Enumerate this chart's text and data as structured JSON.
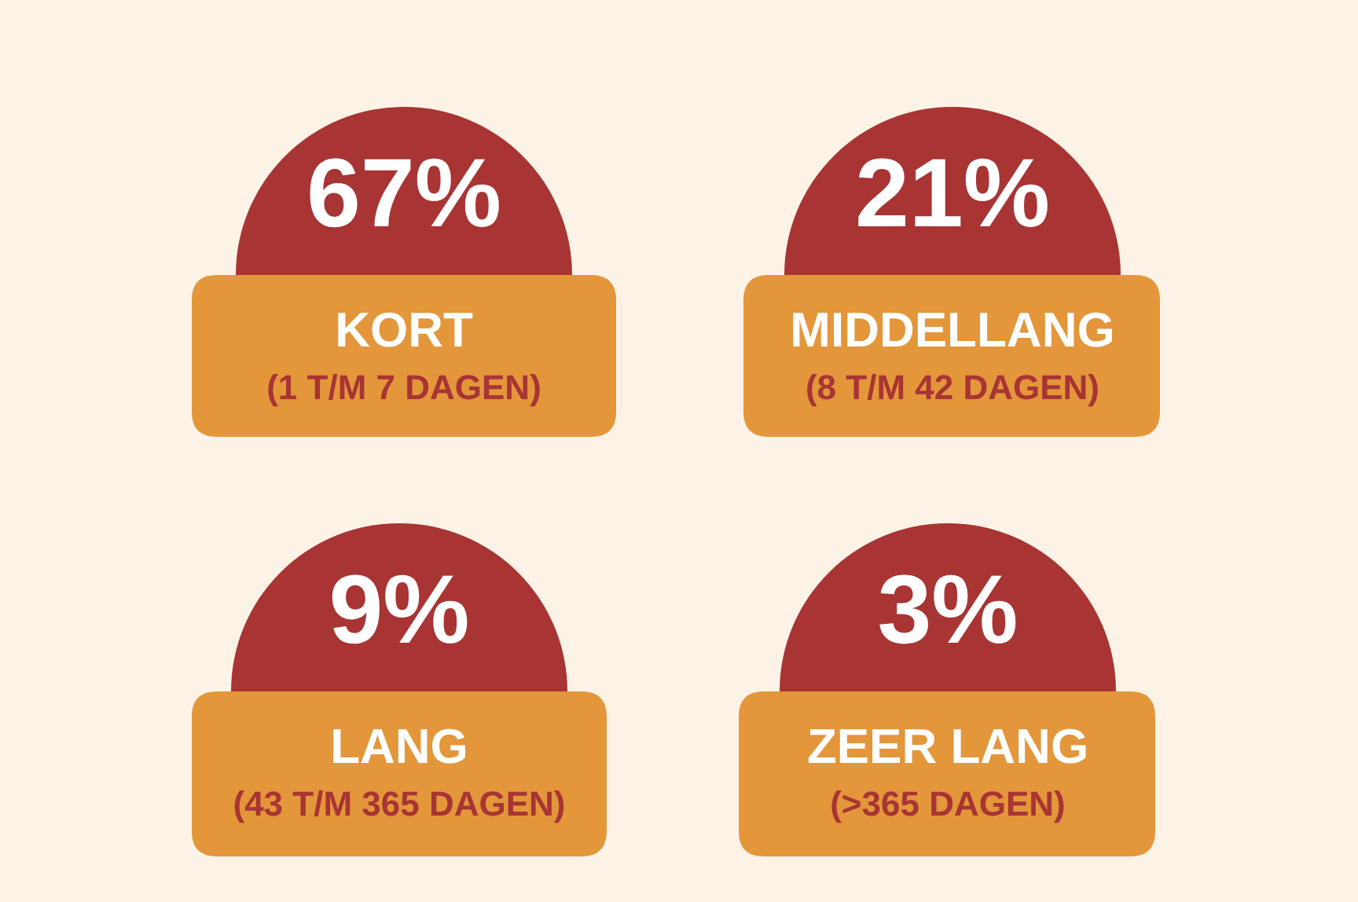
{
  "chart_data": {
    "type": "other",
    "categories": [
      "KORT",
      "MIDDELLANG",
      "LANG",
      "ZEER LANG"
    ],
    "values": [
      67,
      21,
      9,
      3
    ],
    "value_labels": [
      "67%",
      "21%",
      "9%",
      "3%"
    ],
    "annotations": [
      "(1 T/M 7 DAGEN)",
      "(8 T/M 42 DAGEN)",
      "(43 T/M 365 DAGEN)",
      "(>365 DAGEN)"
    ],
    "color": "#a83434"
  }
}
